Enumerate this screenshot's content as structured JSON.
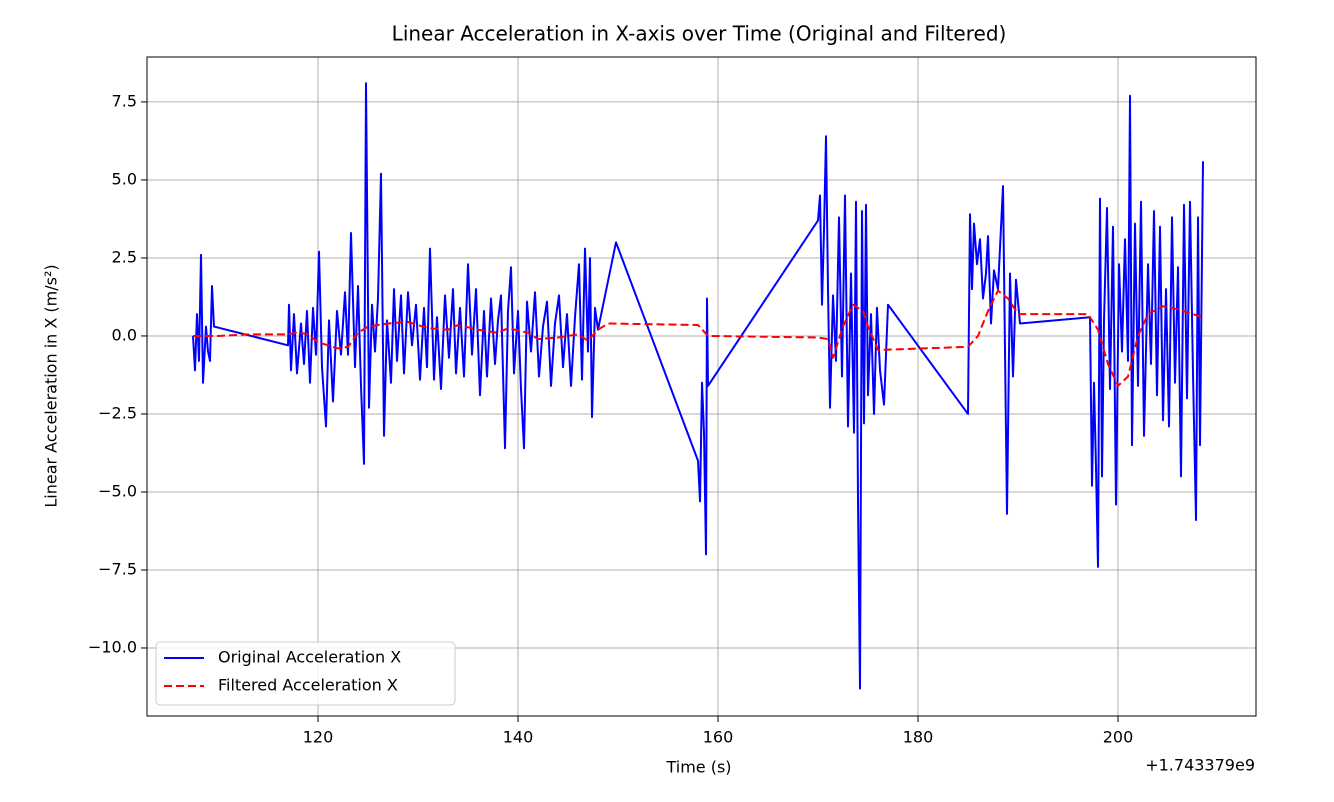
{
  "chart_data": {
    "type": "line",
    "title": "Linear Acceleration in X-axis over Time (Original and Filtered)",
    "x_label": "Time (s)",
    "y_label": "Linear Acceleration in X (m/s²)",
    "x_offset_text": "+1.743379e9",
    "xlim": [
      102.9,
      213.8
    ],
    "ylim": [
      -12.18,
      8.94
    ],
    "xticks": [
      120,
      140,
      160,
      180,
      200
    ],
    "yticks": [
      {
        "value": -10,
        "label": "−10.0"
      },
      {
        "value": -7.5,
        "label": "−7.5"
      },
      {
        "value": -5,
        "label": "−5.0"
      },
      {
        "value": -2.5,
        "label": "−2.5"
      },
      {
        "value": 0,
        "label": "0.0"
      },
      2.5,
      {
        "value": 5,
        "label": "5.0"
      },
      7.5
    ],
    "grid": true,
    "legend": "lower left",
    "series": [
      {
        "name": "Original Acceleration X",
        "color": "#0000ff",
        "linestyle": "solid",
        "x": [
          107.5,
          107.7,
          107.9,
          108.1,
          108.3,
          108.5,
          108.8,
          109.0,
          109.2,
          109.4,
          109.6,
          117,
          117.1,
          117.3,
          117.6,
          117.9,
          118.3,
          118.6,
          118.9,
          119.2,
          119.5,
          119.8,
          120.1,
          120.4,
          120.8,
          121.1,
          121.5,
          121.9,
          122.3,
          122.7,
          123.0,
          123.3,
          123.7,
          124.0,
          124.3,
          124.6,
          124.8,
          125.1,
          125.4,
          125.7,
          126.0,
          126.3,
          126.6,
          126.9,
          127.3,
          127.6,
          127.9,
          128.3,
          128.6,
          129.0,
          129.4,
          129.8,
          130.2,
          130.6,
          130.9,
          131.2,
          131.6,
          131.9,
          132.3,
          132.7,
          133.1,
          133.5,
          133.8,
          134.2,
          134.6,
          135.0,
          135.4,
          135.8,
          136.2,
          136.6,
          136.9,
          137.3,
          137.7,
          138.0,
          138.3,
          138.7,
          139.0,
          139.3,
          139.6,
          140.0,
          140.3,
          140.6,
          140.9,
          141.3,
          141.7,
          142.1,
          142.5,
          142.9,
          143.3,
          143.7,
          144.1,
          144.5,
          144.9,
          145.3,
          145.7,
          146.1,
          146.4,
          146.7,
          147.0,
          147.2,
          147.4,
          147.7,
          148.0,
          149.8,
          158.0,
          158.2,
          158.4,
          158.6,
          158.8,
          158.9,
          159.0,
          170.0,
          170.2,
          170.4,
          170.6,
          170.8,
          171.0,
          171.2,
          171.5,
          171.8,
          172.1,
          172.4,
          172.7,
          173.0,
          173.3,
          173.6,
          173.8,
          174.0,
          174.2,
          174.4,
          174.6,
          174.8,
          175.0,
          175.3,
          175.6,
          175.9,
          176.2,
          176.6,
          177.0,
          185.0,
          185.2,
          185.4,
          185.6,
          185.9,
          186.2,
          186.5,
          186.8,
          187.0,
          187.3,
          187.6,
          188.0,
          188.5,
          188.9,
          189.2,
          189.5,
          189.8,
          190.2,
          197.2,
          197.4,
          197.6,
          197.8,
          198.0,
          198.2,
          198.4,
          198.6,
          198.9,
          199.2,
          199.5,
          199.8,
          200.1,
          200.4,
          200.7,
          201.0,
          201.2,
          201.4,
          201.7,
          202.0,
          202.3,
          202.6,
          203.0,
          203.3,
          203.6,
          203.9,
          204.2,
          204.5,
          204.8,
          205.1,
          205.4,
          205.7,
          206.0,
          206.3,
          206.6,
          206.9,
          207.2,
          207.5,
          207.8,
          208.0,
          208.2,
          208.5
        ],
        "values": [
          0,
          -1.1,
          0.7,
          -0.8,
          2.6,
          -1.5,
          0.3,
          -0.5,
          -0.8,
          1.6,
          0.3,
          -0.3,
          1.0,
          -1.1,
          0.7,
          -1.2,
          0.4,
          -0.9,
          0.8,
          -1.5,
          0.9,
          -0.6,
          2.7,
          -1.0,
          -2.9,
          0.5,
          -2.1,
          0.8,
          -0.6,
          1.4,
          -0.6,
          3.3,
          -1.0,
          1.6,
          -1.6,
          -4.1,
          8.1,
          -2.3,
          1.0,
          -0.5,
          1.2,
          5.2,
          -3.2,
          0.5,
          -1.5,
          1.5,
          -0.8,
          1.3,
          -1.2,
          1.4,
          -0.3,
          1.0,
          -1.4,
          0.9,
          -1.0,
          2.8,
          -1.4,
          0.6,
          -1.7,
          1.3,
          -0.7,
          1.5,
          -1.2,
          0.9,
          -1.3,
          2.3,
          -0.6,
          1.5,
          -1.9,
          0.8,
          -1.3,
          1.2,
          -0.9,
          0.5,
          1.3,
          -3.6,
          0.8,
          2.2,
          -1.2,
          0.8,
          -1.7,
          -3.6,
          1.1,
          -0.5,
          1.4,
          -1.3,
          0.3,
          1.1,
          -1.6,
          0.4,
          1.3,
          -1.0,
          0.7,
          -1.6,
          0.6,
          2.3,
          -1.4,
          2.8,
          -0.5,
          2.5,
          -2.6,
          0.9,
          0.2,
          3.0,
          -4.0,
          -5.3,
          -1.5,
          -3.1,
          -7.0,
          1.2,
          -1.6,
          3.7,
          4.5,
          1.0,
          3.4,
          6.4,
          1.5,
          -2.3,
          1.3,
          -0.8,
          3.8,
          -1.3,
          4.5,
          -2.9,
          2.0,
          -3.1,
          4.3,
          -5.3,
          -11.3,
          4.0,
          -2.8,
          4.2,
          -1.9,
          0.7,
          -2.5,
          0.9,
          -1.1,
          -2.2,
          1.0,
          -2.5,
          3.9,
          1.5,
          3.6,
          2.3,
          3.1,
          1.2,
          2.0,
          3.2,
          0.4,
          2.1,
          1.5,
          4.8,
          -5.7,
          2.0,
          -1.3,
          1.8,
          0.4,
          0.6,
          -4.8,
          -1.5,
          -4.2,
          -7.4,
          4.4,
          -4.5,
          0.5,
          4.1,
          -1.7,
          3.5,
          -5.4,
          2.3,
          -0.5,
          3.1,
          -0.8,
          7.7,
          -3.5,
          3.6,
          -1.6,
          4.3,
          -3.2,
          2.3,
          -0.9,
          4.0,
          -1.9,
          3.5,
          -2.7,
          1.5,
          -2.9,
          3.8,
          -1.5,
          2.2,
          -4.5,
          4.2,
          -2.0,
          4.3,
          -1.2,
          -5.9,
          3.8,
          -3.5,
          5.6
        ]
      },
      {
        "name": "Filtered Acceleration X",
        "color": "#ff0000",
        "linestyle": "dashed",
        "x": [
          107.5,
          110,
          113,
          117,
          118,
          119,
          120,
          122,
          123,
          124,
          125,
          127,
          129,
          131,
          133,
          134,
          136,
          138,
          139,
          141,
          142,
          144,
          146,
          147,
          148,
          149,
          158,
          159,
          170,
          171,
          171.5,
          172.5,
          173.5,
          174.5,
          175,
          176,
          185,
          186,
          187,
          188,
          189,
          190,
          197,
          198,
          199,
          200,
          201,
          202,
          203,
          204.5,
          206,
          208.5
        ],
        "values": [
          0.0,
          0.0,
          0.05,
          0.05,
          0.12,
          0.05,
          -0.2,
          -0.4,
          -0.35,
          0.1,
          0.3,
          0.4,
          0.45,
          0.25,
          0.2,
          0.35,
          0.2,
          0.1,
          0.25,
          0.1,
          -0.1,
          -0.05,
          0.05,
          -0.15,
          0.2,
          0.4,
          0.35,
          0.0,
          -0.05,
          -0.1,
          -0.7,
          0.3,
          1.0,
          0.8,
          0.3,
          -0.45,
          -0.35,
          0.0,
          0.8,
          1.45,
          1.2,
          0.7,
          0.7,
          0.2,
          -0.9,
          -1.6,
          -1.3,
          0.0,
          0.7,
          0.95,
          0.85,
          0.6
        ]
      }
    ]
  }
}
